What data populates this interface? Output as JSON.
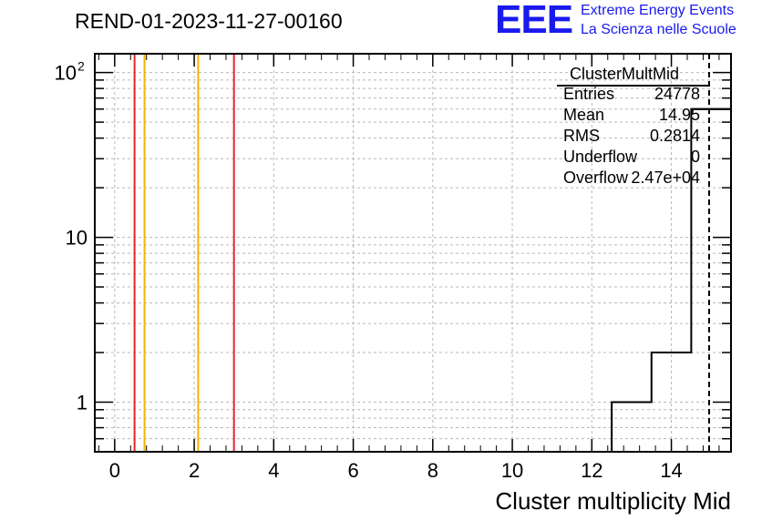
{
  "header": {
    "run_title": "REND-01-2023-11-27-00160"
  },
  "logo": {
    "mark": "EEE",
    "line1": "Extreme Energy Events",
    "line2": "La Scienza nelle Scuole"
  },
  "stats": {
    "title": "ClusterMultMid",
    "rows": [
      {
        "label": "Entries",
        "value": "24778"
      },
      {
        "label": "Mean",
        "value": "14.95"
      },
      {
        "label": "RMS",
        "value": "0.2814"
      },
      {
        "label": "Underflow",
        "value": "0"
      },
      {
        "label": "Overflow",
        "value": "2.47e+04"
      }
    ]
  },
  "chart_data": {
    "type": "histogram",
    "xlabel": "Cluster multiplicity Mid",
    "ylabel": "",
    "xlim": [
      -0.5,
      15.5
    ],
    "ylim": [
      0.5,
      130
    ],
    "yscale": "log",
    "grid": true,
    "x_ticks": [
      0,
      2,
      4,
      6,
      8,
      10,
      12,
      14
    ],
    "y_tick_labels": [
      {
        "value": 1,
        "label": "1"
      },
      {
        "value": 10,
        "label": "10"
      },
      {
        "value": 100,
        "label": "10",
        "exponent": "2"
      }
    ],
    "bin_edges": [
      12.5,
      13.5,
      14.5,
      15.5
    ],
    "bin_counts": [
      1,
      2,
      60
    ],
    "hist_color": "#000000",
    "vertical_lines": [
      {
        "x": 0.5,
        "color": "#e8242b",
        "style": "solid"
      },
      {
        "x": 0.75,
        "color": "#f2b300",
        "style": "solid"
      },
      {
        "x": 2.1,
        "color": "#f2b300",
        "style": "solid"
      },
      {
        "x": 3.0,
        "color": "#e8242b",
        "style": "solid"
      },
      {
        "x": 14.95,
        "color": "#000000",
        "style": "dashed"
      }
    ]
  }
}
